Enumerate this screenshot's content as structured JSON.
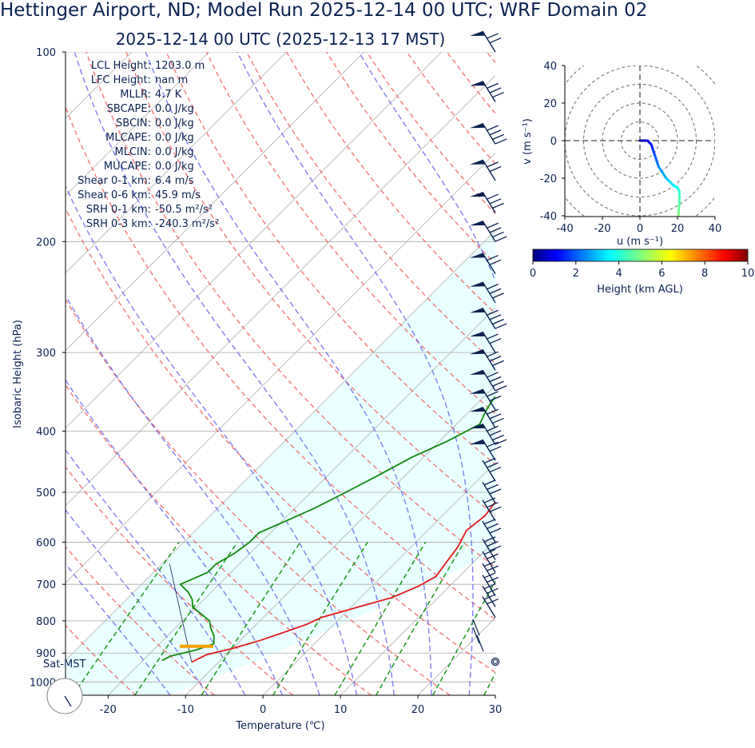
{
  "title": "Hettinger Airport, ND; Model Run 2025-12-14 00 UTC; WRF Domain 02",
  "subtitle": "2025-12-14 00 UTC  (2025-12-13 17 MST)",
  "station_label": "Sat-MST",
  "skewt": {
    "xlabel": "Temperature (℃)",
    "ylabel": "Isobaric Height (hPa)",
    "xticks": [
      -20,
      -10,
      0,
      10,
      20,
      30
    ],
    "yticks": [
      100,
      200,
      300,
      400,
      500,
      600,
      700,
      800,
      900,
      1000
    ]
  },
  "stats": [
    {
      "label": "LCL Height:",
      "value": "1203.0 m"
    },
    {
      "label": "LFC Height:",
      "value": "nan m"
    },
    {
      "label": "MLLR:",
      "value": "4.7 K"
    },
    {
      "label": "SBCAPE:",
      "value": "0.0 J/kg"
    },
    {
      "label": "SBCIN:",
      "value": "0.0 J/kg"
    },
    {
      "label": "MLCAPE:",
      "value": "0.0 J/kg"
    },
    {
      "label": "MLCIN:",
      "value": "0.0 J/kg"
    },
    {
      "label": "MUCAPE:",
      "value": "0.0 J/kg"
    },
    {
      "label": "Shear 0-1 km:",
      "value": "6.4 m/s"
    },
    {
      "label": "Shear 0-6 km:",
      "value": "45.9 m/s"
    },
    {
      "label": "SRH 0-1 km:",
      "value": "-50.5 m²/s²"
    },
    {
      "label": "SRH 0-3 km:",
      "value": "-240.3 m²/s²"
    }
  ],
  "hodograph": {
    "xlabel": "u (m s⁻¹)",
    "ylabel": "v (m s⁻¹)",
    "ticks": [
      -40,
      -20,
      0,
      20,
      40
    ]
  },
  "colorbar": {
    "label": "Height (km AGL)",
    "ticks": [
      0,
      2,
      4,
      6,
      8,
      10
    ]
  },
  "chart_data": [
    {
      "type": "line",
      "xlabel": "Temperature (℃)",
      "ylabel": "Isobaric Height (hPa)",
      "ylim": [
        1050,
        100
      ],
      "yscale": "log",
      "series": [
        {
          "values": [
            [
              -13.5,
              930
            ],
            [
              -12.5,
              905
            ],
            [
              -10,
              885
            ],
            [
              -7.5,
              860
            ],
            [
              -5.5,
              835
            ],
            [
              -3.5,
              810
            ],
            [
              -2.5,
              790
            ],
            [
              1,
              760
            ],
            [
              4,
              735
            ],
            [
              6,
              705
            ],
            [
              7,
              680
            ],
            [
              6.5,
              645
            ],
            [
              6,
              610
            ],
            [
              5,
              575
            ],
            [
              5.5,
              545
            ],
            [
              5,
              515
            ],
            [
              5.5,
              480
            ],
            [
              5.5,
              440
            ],
            [
              4.5,
              400
            ],
            [
              3,
              365
            ],
            [
              1,
              335
            ],
            [
              -1.5,
              305
            ],
            [
              -3.5,
              280
            ],
            [
              -5,
              255
            ],
            [
              -6.5,
              230
            ],
            [
              -7.5,
              210
            ],
            [
              -6.5,
              195
            ],
            [
              -5,
              180
            ],
            [
              -3.5,
              165
            ],
            [
              -1,
              150
            ],
            [
              1,
              137
            ],
            [
              3,
              126
            ],
            [
              5,
              116
            ],
            [
              7,
              108
            ],
            [
              9,
              100
            ]
          ]
        },
        {
          "values": [
            [
              -17.5,
              925
            ],
            [
              -17,
              910
            ],
            [
              -14.5,
              890
            ],
            [
              -13,
              870
            ],
            [
              -14,
              845
            ],
            [
              -15.5,
              820
            ],
            [
              -16.5,
              800
            ],
            [
              -18.5,
              780
            ],
            [
              -20.5,
              760
            ],
            [
              -21.5,
              740
            ],
            [
              -23,
              720
            ],
            [
              -25,
              700
            ],
            [
              -24,
              685
            ],
            [
              -23,
              670
            ],
            [
              -23,
              650
            ],
            [
              -22,
              625
            ],
            [
              -21.5,
              600
            ],
            [
              -21.5,
              580
            ],
            [
              -19.5,
              555
            ],
            [
              -17.5,
              530
            ],
            [
              -15.5,
              500
            ],
            [
              -13.5,
              470
            ],
            [
              -11.5,
              440
            ],
            [
              -9,
              415
            ],
            [
              -7,
              390
            ],
            [
              -8,
              370
            ],
            [
              -8.5,
              355
            ],
            [
              -8.5,
              330
            ],
            [
              -9,
              305
            ],
            [
              -9.5,
              275
            ],
            [
              -9.5,
              250
            ],
            [
              -8.5,
              225
            ],
            [
              -8,
              200
            ],
            [
              -8,
              180
            ],
            [
              -7.5,
              165
            ],
            [
              -6.5,
              150
            ],
            [
              -5,
              140
            ],
            [
              -3,
              130
            ],
            [
              -1,
              120
            ],
            [
              1.5,
              110
            ],
            [
              4,
              100
            ]
          ]
        }
      ]
    },
    {
      "type": "line",
      "xlabel": "u (m s⁻¹)",
      "ylabel": "v (m s⁻¹)",
      "xlim": [
        -40,
        40
      ],
      "ylim": [
        -40,
        40
      ],
      "series": [
        {
          "values": [
            [
              0,
              0
            ],
            [
              2,
              0
            ],
            [
              4,
              0
            ],
            [
              5,
              -1
            ],
            [
              6,
              -2
            ],
            [
              7,
              -5
            ],
            [
              8,
              -8
            ],
            [
              9,
              -11
            ],
            [
              10,
              -14
            ],
            [
              12,
              -17
            ],
            [
              14,
              -20
            ],
            [
              16,
              -22
            ],
            [
              18,
              -24
            ],
            [
              20,
              -25
            ],
            [
              21,
              -27
            ],
            [
              21,
              -30
            ],
            [
              21,
              -34
            ],
            [
              20.5,
              -38
            ],
            [
              20.5,
              -40
            ]
          ]
        }
      ]
    }
  ]
}
